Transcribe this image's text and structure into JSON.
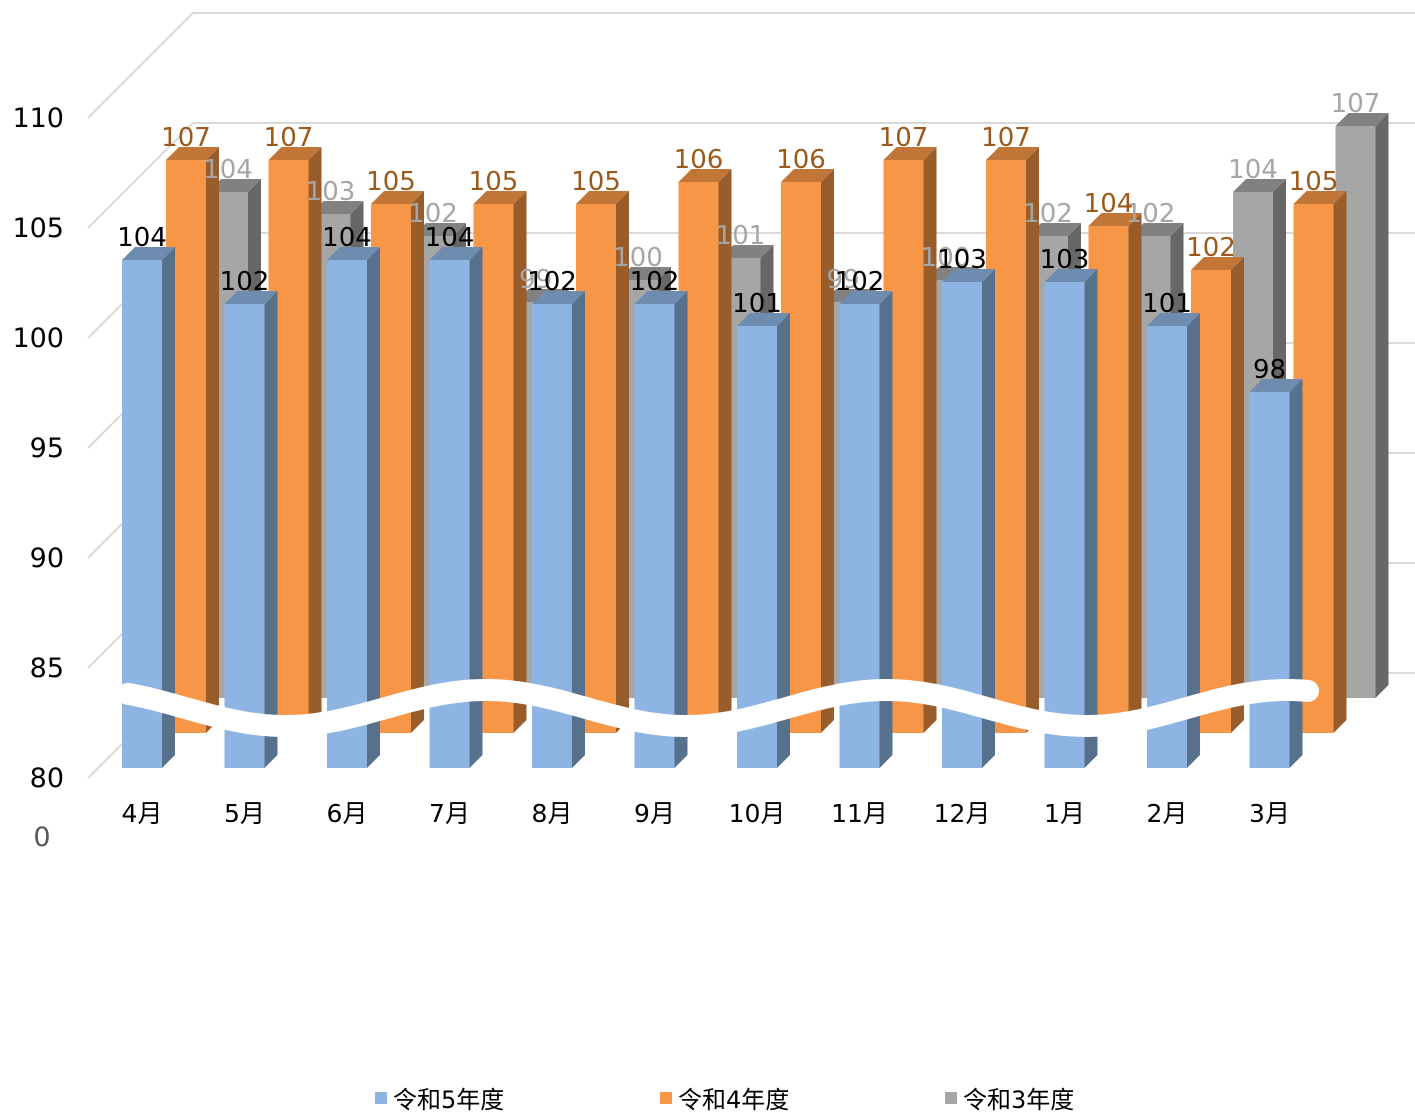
{
  "chart_data": {
    "type": "bar",
    "categories": [
      "4月",
      "5月",
      "6月",
      "7月",
      "8月",
      "9月",
      "10月",
      "11月",
      "12月",
      "1月",
      "2月",
      "3月"
    ],
    "series": [
      {
        "name": "令和5年度",
        "values": [
          104,
          102,
          104,
          104,
          102,
          102,
          101,
          102,
          103,
          103,
          101,
          98
        ],
        "color": "#8db4e2",
        "label_color": "#000000"
      },
      {
        "name": "令和4年度",
        "values": [
          107,
          107,
          105,
          105,
          105,
          106,
          106,
          107,
          107,
          104,
          102,
          105
        ],
        "color": "#f79646",
        "label_color": "#9c5a1a"
      },
      {
        "name": "令和3年度",
        "values": [
          104,
          103,
          102,
          99,
          100,
          101,
          99,
          100,
          102,
          102,
          104,
          107
        ],
        "color": "#a6a6a6",
        "label_color": "#a6a6a6"
      }
    ],
    "y_ticks": [
      "110",
      "105",
      "100",
      "95",
      "90",
      "85",
      "80"
    ],
    "y_break_label": "0",
    "ylim": [
      80,
      110
    ],
    "axis_break": true,
    "grid": true,
    "legend_position": "bottom",
    "style": "3d clustered column"
  }
}
